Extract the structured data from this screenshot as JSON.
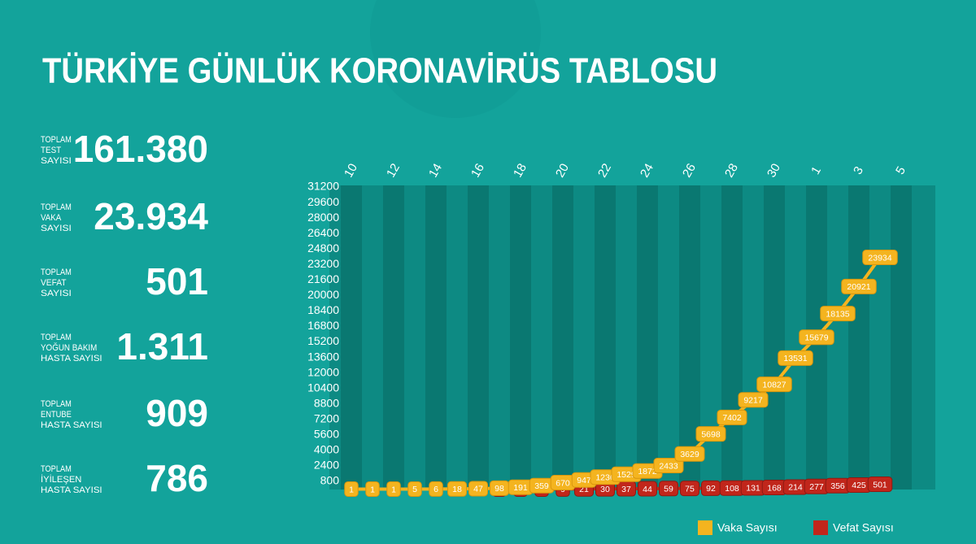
{
  "title": "TÜRKİYE GÜNLÜK KORONAVİRÜS TABLOSU",
  "stats": [
    {
      "label": [
        "TOPLAM",
        "TEST",
        "SAYISI"
      ],
      "value": "161.380"
    },
    {
      "label": [
        "TOPLAM",
        "VAKA",
        "SAYISI"
      ],
      "value": "23.934"
    },
    {
      "label": [
        "TOPLAM",
        "VEFAT",
        "SAYISI"
      ],
      "value": "501"
    },
    {
      "label": [
        "TOPLAM",
        "YOĞUN BAKIM",
        "HASTA SAYISI"
      ],
      "value": "1.311"
    },
    {
      "label": [
        "TOPLAM",
        "ENTUBE",
        "HASTA SAYISI"
      ],
      "value": "909"
    },
    {
      "label": [
        "TOPLAM",
        "İYİLEŞEN",
        "HASTA SAYISI"
      ],
      "value": "786"
    }
  ],
  "chart_data": {
    "type": "line",
    "categories": [
      "10",
      null,
      "12",
      null,
      "14",
      null,
      "16",
      null,
      "18",
      null,
      "20",
      null,
      "22",
      null,
      "24",
      null,
      "26",
      null,
      "28",
      null,
      "30",
      null,
      "1",
      null,
      "3",
      null,
      "5"
    ],
    "series": [
      {
        "name": "Vaka Sayısı",
        "color": "#f4b41f",
        "values": [
          1,
          1,
          1,
          5,
          6,
          18,
          47,
          98,
          191,
          359,
          670,
          947,
          1236,
          1529,
          1872,
          2433,
          3629,
          5698,
          7402,
          9217,
          10827,
          13531,
          15679,
          18135,
          20921,
          23934,
          null
        ]
      },
      {
        "name": "Vefat Sayısı",
        "color": "#c1261b",
        "values": [
          null,
          null,
          null,
          null,
          null,
          null,
          null,
          1,
          2,
          4,
          9,
          21,
          30,
          37,
          44,
          59,
          75,
          92,
          108,
          131,
          168,
          214,
          277,
          356,
          425,
          501,
          null
        ]
      }
    ],
    "ylim": [
      0,
      31200
    ],
    "yticks": [
      800,
      2400,
      4000,
      5600,
      7200,
      8800,
      10400,
      12000,
      13600,
      15200,
      16800,
      18400,
      20000,
      21600,
      23200,
      24800,
      26400,
      28000,
      29600,
      31200
    ],
    "legend": "bottom-right"
  }
}
